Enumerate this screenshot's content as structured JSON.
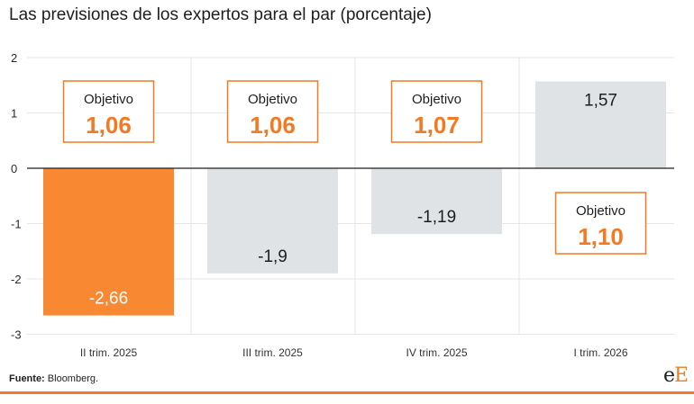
{
  "chart_data": {
    "type": "bar",
    "title": "Las previsiones de los expertos para el par (porcentaje)",
    "categories": [
      "II trim. 2025",
      "III trim. 2025",
      "IV trim. 2025",
      "I trim. 2026"
    ],
    "values": [
      -2.66,
      -1.9,
      -1.19,
      1.57
    ],
    "value_labels": [
      "-2,66",
      "-1,9",
      "-1,19",
      "1,57"
    ],
    "yticks": [
      {
        "value": 2,
        "label": "2"
      },
      {
        "value": 1,
        "label": "1"
      },
      {
        "value": 0,
        "label": "0"
      },
      {
        "value": -1,
        "label": "-1"
      },
      {
        "value": -2,
        "label": "-2"
      },
      {
        "value": -3,
        "label": "-3"
      }
    ],
    "ylim": [
      -3,
      2
    ],
    "grid": true,
    "highlight_index": 0,
    "annotations": [
      {
        "label": "Objetivo",
        "value": "1,06"
      },
      {
        "label": "Objetivo",
        "value": "1,06"
      },
      {
        "label": "Objetivo",
        "value": "1,07"
      },
      {
        "label": "Objetivo",
        "value": "1,10"
      }
    ]
  },
  "source": {
    "label": "Fuente:",
    "text": " Bloomberg."
  },
  "brand": {
    "lower": "e",
    "upper": "E"
  },
  "colors": {
    "highlight": "#f98833",
    "bar": "#e0e3e6",
    "accent": "#f47920",
    "grid": "#e6e6e6",
    "text": "#1e1e1e"
  }
}
